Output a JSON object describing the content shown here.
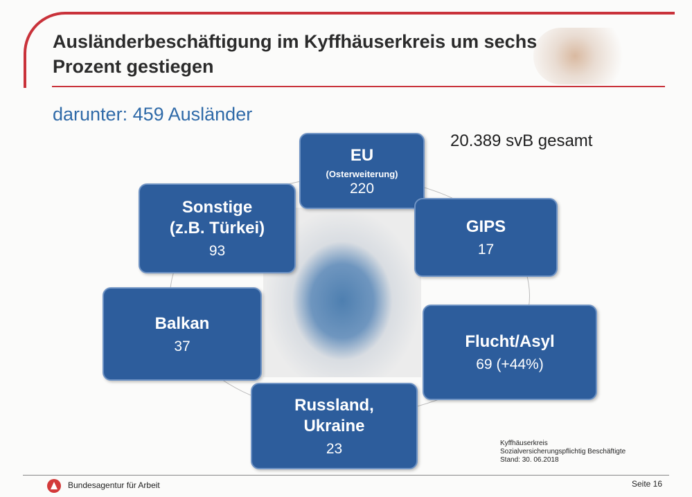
{
  "title": "Ausländerbeschäftigung im Kyffhäuserkreis um sechs Prozent gestiegen",
  "subtitle": "darunter: 459 Ausländer",
  "total": "20.389 svB gesamt",
  "groups": [
    {
      "name": "EU",
      "sub": "(Osterweiterung)",
      "value": "220"
    },
    {
      "name": "Sonstige (z.B. Türkei)",
      "value": "93"
    },
    {
      "name": "GIPS",
      "value": "17"
    },
    {
      "name": "Balkan",
      "value": "37"
    },
    {
      "name": "Flucht/Asyl",
      "value": "69 (+44%)"
    },
    {
      "name": "Russland, Ukraine",
      "value": "23"
    }
  ],
  "note": {
    "line1": "Kyffhäuserkreis",
    "line2": "Sozialversicherungspflichtig Beschäftigte",
    "line3": "Stand: 30. 06.2018"
  },
  "footer": {
    "org": "Bundesagentur für Arbeit",
    "page": "Seite 16"
  },
  "colors": {
    "accent": "#c9323a",
    "box": "#2d5d9c",
    "subtitle": "#2f6aa8"
  }
}
